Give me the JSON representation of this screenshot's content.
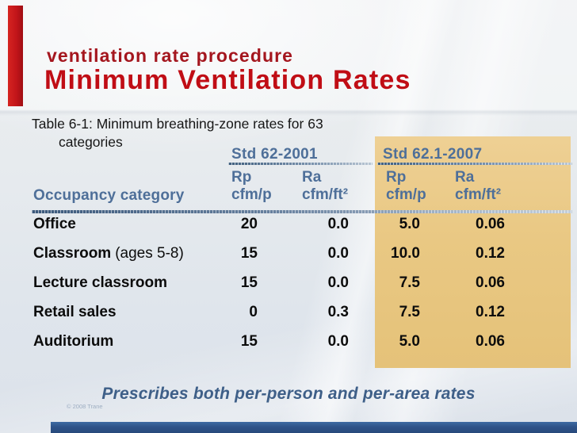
{
  "slide": {
    "kicker": "ventilation rate procedure",
    "title": "Minimum Ventilation Rates",
    "caption": {
      "line1": "Table 6-1: Minimum breathing-zone rates for 63",
      "line2": "categories"
    },
    "footer_note": "Prescribes both per-person and per-area rates",
    "copyright": "© 2008 Trane"
  },
  "table": {
    "row_header": "Occupancy category",
    "groups": [
      {
        "label": "Std 62-2001",
        "columns": [
          {
            "symbol": "Rp",
            "unit": "cfm/p"
          },
          {
            "symbol": "Ra",
            "unit": "cfm/ft²"
          }
        ]
      },
      {
        "label": "Std 62.1-2007",
        "columns": [
          {
            "symbol": "Rp",
            "unit": "cfm/p"
          },
          {
            "symbol": "Ra",
            "unit": "cfm/ft²"
          }
        ]
      }
    ],
    "rows": [
      {
        "category": "Office",
        "note": "",
        "values": [
          "20",
          "0.0",
          "5.0",
          "0.06"
        ]
      },
      {
        "category": "Classroom",
        "note": "(ages 5-8)",
        "values": [
          "15",
          "0.0",
          "10.0",
          "0.12"
        ]
      },
      {
        "category": "Lecture classroom",
        "note": "",
        "values": [
          "15",
          "0.0",
          "7.5",
          "0.06"
        ]
      },
      {
        "category": "Retail sales",
        "note": "",
        "values": [
          "0",
          "0.3",
          "7.5",
          "0.12"
        ]
      },
      {
        "category": "Auditorium",
        "note": "",
        "values": [
          "15",
          "0.0",
          "5.0",
          "0.06"
        ]
      }
    ]
  },
  "chart_data": {
    "type": "table",
    "title": "Table 6-1: Minimum breathing-zone rates for 63 categories",
    "columns": [
      "Occupancy category",
      "Std 62-2001 Rp cfm/p",
      "Std 62-2001 Ra cfm/ft²",
      "Std 62.1-2007 Rp cfm/p",
      "Std 62.1-2007 Ra cfm/ft²"
    ],
    "rows": [
      [
        "Office",
        20,
        0.0,
        5.0,
        0.06
      ],
      [
        "Classroom (ages 5-8)",
        15,
        0.0,
        10.0,
        0.12
      ],
      [
        "Lecture classroom",
        15,
        0.0,
        7.5,
        0.06
      ],
      [
        "Retail sales",
        0,
        0.3,
        7.5,
        0.12
      ],
      [
        "Auditorium",
        15,
        0.0,
        5.0,
        0.06
      ]
    ]
  },
  "colors": {
    "kicker_red": "#a4161e",
    "title_red": "#c00d15",
    "header_blue": "#4e6f99",
    "highlight_yellow": "#e9c883",
    "footer_blue": "#3e5f88",
    "ribbon_red": "#c2151a",
    "bottom_bar_blue": "#2f5389"
  }
}
